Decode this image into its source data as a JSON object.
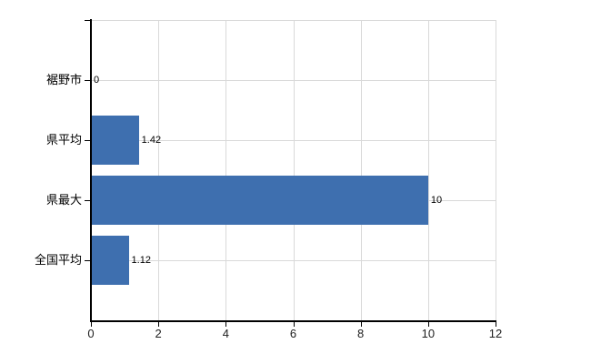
{
  "chart_data": {
    "type": "bar",
    "orientation": "horizontal",
    "categories": [
      "裾野市",
      "県平均",
      "県最大",
      "全国平均"
    ],
    "values": [
      0,
      1.42,
      10,
      1.12
    ],
    "value_labels": [
      "0",
      "1.42",
      "10",
      "1.12"
    ],
    "x_ticks": [
      0,
      2,
      4,
      6,
      8,
      10,
      12
    ],
    "x_tick_labels": [
      "0",
      "2",
      "4",
      "6",
      "8",
      "10",
      "12"
    ],
    "xlim": [
      0,
      12
    ],
    "grid": true,
    "legend_position": "none",
    "bar_color": "#3e6faf",
    "gridline_color": "#d9d9d9",
    "axis_color": "#000000",
    "background_color": "#ffffff"
  }
}
